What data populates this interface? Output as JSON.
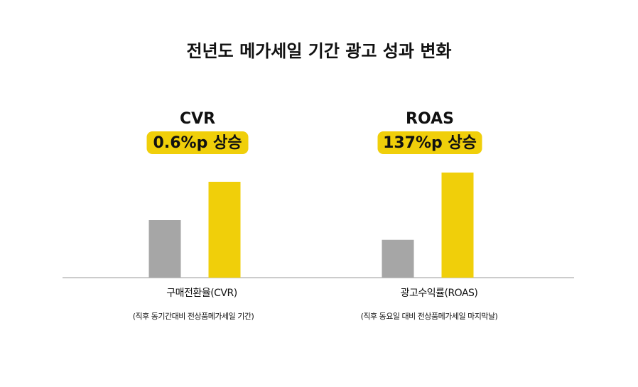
{
  "title": "전년도 메가세일 기간 광고 성과 변화",
  "chart_data": [
    {
      "type": "bar",
      "title": "CVR",
      "badge": "0.6%p 상승",
      "values": [
        0.9,
        1.5
      ],
      "colors": [
        "#a6a6a6",
        "#f0cf0a"
      ],
      "xlabel": "구매전환율(CVR)",
      "note": "(직후 동기간대비 전상품메가세일 기간)"
    },
    {
      "type": "bar",
      "title": "ROAS",
      "badge": "137%p 상승",
      "values": [
        77,
        214
      ],
      "colors": [
        "#a6a6a6",
        "#f0cf0a"
      ],
      "xlabel": "광고수익률(ROAS)",
      "note": "(직후 동요일 대비 전상품메가세일 마지막날)"
    }
  ]
}
